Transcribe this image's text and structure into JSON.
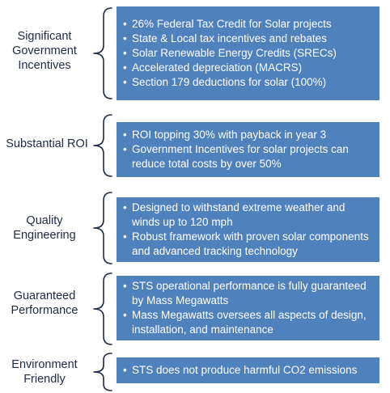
{
  "sections": [
    {
      "label": "Significant\nGovernment\nIncentives",
      "bullets": [
        "26% Federal Tax Credit for Solar projects",
        "State & Local tax incentives and rebates",
        "Solar Renewable Energy Credits (SRECs)",
        "Accelerated depreciation (MACRS)",
        "Section 179 deductions for solar (100%)"
      ]
    },
    {
      "label": "Substantial ROI",
      "bullets": [
        "ROI topping 30% with payback in year 3",
        "Government Incentives for solar projects can reduce total costs by over 50%"
      ]
    },
    {
      "label": "Quality\nEngineering",
      "bullets": [
        "Designed to withstand extreme weather and winds up to 120 mph",
        "Robust framework with proven solar components and advanced tracking technology"
      ]
    },
    {
      "label": "Guaranteed\nPerformance",
      "bullets": [
        "STS operational performance is fully guaranteed by Mass Megawatts",
        "Mass Megawatts oversees all aspects of design, installation, and maintenance"
      ]
    },
    {
      "label": "Environment\nFriendly",
      "bullets": [
        "STS does not produce harmful CO2 emissions"
      ]
    }
  ]
}
